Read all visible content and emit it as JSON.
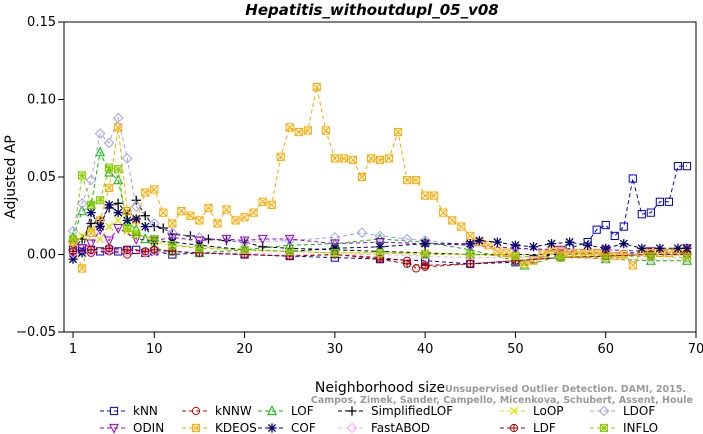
{
  "chart_data": {
    "type": "line",
    "title": "Hepatitis_withoutdupl_05_v08",
    "xlabel": "Neighborhood size",
    "ylabel": "Adjusted AP",
    "xlim": [
      0,
      70
    ],
    "ylim": [
      -0.05,
      0.15
    ],
    "xticks": [
      "1",
      "10",
      "20",
      "30",
      "40",
      "50",
      "60",
      "70"
    ],
    "yticks": [
      "−0.05",
      "0.00",
      "0.05",
      "0.10",
      "0.15"
    ],
    "grid": false,
    "legend_position": "bottom",
    "watermark": [
      "Unsupervised Outlier Detection. DAMI, 2015.",
      "Campos, Zimek, Sander, Campello, Micenkova, Schubert, Assent, Houle"
    ],
    "series": [
      {
        "name": "kNN",
        "color": "#0000cc",
        "marker": "square",
        "x": [
          1,
          2,
          3,
          4,
          5,
          6,
          7,
          8,
          9,
          10,
          12,
          15,
          20,
          25,
          30,
          35,
          40,
          45,
          50,
          52,
          54,
          56,
          58,
          59,
          60,
          61,
          62,
          63,
          64,
          65,
          66,
          67,
          68,
          69
        ],
        "y": [
          0.003,
          0.004,
          0.003,
          0.002,
          0.003,
          0.002,
          0.003,
          0.003,
          0.001,
          0.002,
          0.0,
          0.001,
          0.0,
          -0.001,
          -0.002,
          -0.003,
          -0.004,
          -0.006,
          -0.005,
          -0.003,
          0.0,
          0.004,
          0.008,
          0.016,
          0.019,
          0.012,
          0.018,
          0.049,
          0.026,
          0.027,
          0.034,
          0.034,
          0.057,
          0.057
        ]
      },
      {
        "name": "kNNW",
        "color": "#cc0000",
        "marker": "circle",
        "x": [
          1,
          3,
          5,
          7,
          9,
          10,
          12,
          15,
          20,
          25,
          30,
          35,
          38,
          39,
          40,
          45,
          50,
          55,
          60,
          65,
          69
        ],
        "y": [
          0.001,
          0.001,
          0.002,
          0.0,
          0.001,
          0.002,
          0.002,
          0.001,
          0.0,
          -0.001,
          0.0,
          -0.002,
          -0.004,
          -0.009,
          -0.008,
          -0.006,
          -0.004,
          -0.002,
          -0.001,
          0.0,
          0.0
        ]
      },
      {
        "name": "LOF",
        "color": "#00bb00",
        "marker": "triangle-up",
        "x": [
          1,
          2,
          3,
          4,
          5,
          6,
          7,
          8,
          9,
          10,
          12,
          15,
          20,
          25,
          30,
          35,
          40,
          45,
          50,
          51,
          55,
          60,
          65,
          69
        ],
        "y": [
          0.011,
          0.028,
          0.032,
          0.066,
          0.053,
          0.048,
          0.021,
          0.016,
          0.01,
          0.004,
          0.002,
          0.001,
          0.003,
          0.006,
          0.007,
          0.01,
          0.008,
          0.003,
          -0.004,
          -0.007,
          -0.001,
          -0.003,
          -0.004,
          -0.004
        ]
      },
      {
        "name": "SimplifiedLOF",
        "color": "#000000",
        "marker": "plus",
        "x": [
          1,
          2,
          3,
          4,
          5,
          6,
          7,
          8,
          9,
          10,
          11,
          12,
          14,
          16,
          18,
          20,
          22,
          25,
          30,
          35,
          40,
          45,
          50,
          55,
          60,
          65,
          69
        ],
        "y": [
          0.003,
          0.01,
          0.02,
          0.022,
          0.03,
          0.033,
          0.026,
          0.035,
          0.025,
          0.018,
          0.017,
          0.013,
          0.012,
          0.01,
          0.009,
          0.008,
          0.005,
          0.004,
          0.003,
          0.002,
          0.001,
          0.0,
          0.0,
          0.0,
          0.001,
          0.001,
          0.001
        ]
      },
      {
        "name": "LoOP",
        "color": "#dddd00",
        "marker": "x",
        "x": [
          1,
          2,
          3,
          4,
          5,
          6,
          7,
          8,
          10,
          12,
          15,
          20,
          25,
          30,
          35,
          40,
          45,
          50,
          55,
          60,
          65,
          69
        ],
        "y": [
          0.005,
          0.012,
          0.016,
          0.01,
          0.018,
          0.022,
          0.015,
          0.014,
          0.008,
          0.006,
          0.005,
          0.003,
          0.002,
          0.001,
          0.001,
          0.001,
          0.0,
          0.0,
          0.0,
          0.0,
          0.0,
          0.0
        ]
      },
      {
        "name": "LDOF",
        "color": "#a0a0ee",
        "marker": "diamond",
        "x": [
          1,
          2,
          3,
          4,
          5,
          6,
          7,
          8,
          10,
          12,
          15,
          20,
          25,
          30,
          33,
          35,
          38,
          40,
          45,
          50,
          55,
          60,
          65,
          69
        ],
        "y": [
          0.015,
          0.033,
          0.048,
          0.078,
          0.072,
          0.088,
          0.062,
          0.031,
          0.02,
          0.014,
          0.011,
          0.008,
          0.009,
          0.011,
          0.014,
          0.012,
          0.01,
          0.009,
          0.006,
          0.004,
          0.002,
          0.001,
          0.0,
          0.0
        ]
      },
      {
        "name": "ODIN",
        "color": "#9900cc",
        "marker": "triangle-down",
        "x": [
          1,
          2,
          3,
          4,
          5,
          6,
          8,
          10,
          12,
          15,
          18,
          20,
          22,
          25,
          30,
          35,
          40,
          45,
          50,
          55,
          60,
          65,
          69
        ],
        "y": [
          0.006,
          0.004,
          0.007,
          0.016,
          0.009,
          0.017,
          0.01,
          0.009,
          0.011,
          0.009,
          0.01,
          0.009,
          0.01,
          0.01,
          0.007,
          0.008,
          0.007,
          0.006,
          0.004,
          0.003,
          0.003,
          0.002,
          0.004
        ]
      },
      {
        "name": "KDEOS",
        "color": "#ffaa00",
        "marker": "square-x",
        "x": [
          1,
          2,
          3,
          4,
          5,
          6,
          7,
          8,
          9,
          10,
          11,
          12,
          13,
          14,
          15,
          16,
          17,
          18,
          19,
          20,
          21,
          22,
          23,
          24,
          25,
          26,
          27,
          28,
          29,
          30,
          31,
          32,
          33,
          34,
          35,
          36,
          37,
          38,
          39,
          40,
          41,
          42,
          43,
          44,
          45,
          46,
          47,
          48,
          49,
          50,
          51,
          52,
          53,
          54,
          55,
          56,
          57,
          58,
          59,
          60,
          61,
          62,
          63,
          64,
          65,
          66,
          67,
          68,
          69
        ],
        "y": [
          0.008,
          -0.009,
          0.014,
          0.022,
          0.043,
          0.082,
          0.028,
          0.022,
          0.04,
          0.042,
          0.027,
          0.02,
          0.028,
          0.025,
          0.022,
          0.03,
          0.02,
          0.029,
          0.022,
          0.024,
          0.027,
          0.034,
          0.032,
          0.063,
          0.082,
          0.079,
          0.08,
          0.108,
          0.08,
          0.062,
          0.062,
          0.061,
          0.05,
          0.062,
          0.061,
          0.062,
          0.079,
          0.048,
          0.048,
          0.038,
          0.038,
          0.027,
          0.022,
          0.018,
          0.012,
          0.008,
          0.006,
          0.002,
          0.001,
          -0.002,
          -0.006,
          -0.004,
          0.0,
          0.003,
          0.002,
          0.001,
          0.001,
          0.001,
          0.001,
          0.0,
          -0.001,
          0.0,
          -0.007,
          0.002,
          0.001,
          0.001,
          0.001,
          0.002,
          0.002
        ]
      },
      {
        "name": "COF",
        "color": "#000066",
        "marker": "asterisk",
        "x": [
          1,
          2,
          3,
          4,
          5,
          6,
          7,
          8,
          9,
          10,
          12,
          15,
          20,
          25,
          30,
          35,
          40,
          45,
          46,
          48,
          50,
          52,
          54,
          56,
          58,
          60,
          62,
          64,
          66,
          68,
          69
        ],
        "y": [
          -0.003,
          0.001,
          0.027,
          0.018,
          0.032,
          0.027,
          0.022,
          0.023,
          0.018,
          0.009,
          0.008,
          0.006,
          0.003,
          0.002,
          0.004,
          0.005,
          0.007,
          0.007,
          0.009,
          0.008,
          0.006,
          0.005,
          0.007,
          0.008,
          0.006,
          0.004,
          0.007,
          0.004,
          0.004,
          0.004,
          0.004
        ]
      },
      {
        "name": "FastABOD",
        "color": "#ffaaff",
        "marker": "diamond",
        "x": [
          1,
          3,
          5,
          7,
          9,
          10,
          15,
          20,
          25,
          30,
          35,
          40,
          45,
          50,
          55,
          60,
          65,
          69
        ],
        "y": [
          0.001,
          0.002,
          0.003,
          0.002,
          0.001,
          0.002,
          0.001,
          0.001,
          0.0,
          0.0,
          0.0,
          -0.001,
          -0.002,
          -0.002,
          -0.002,
          -0.003,
          -0.003,
          -0.003
        ]
      },
      {
        "name": "LDF",
        "color": "#990000",
        "marker": "circle-plus",
        "x": [
          1,
          3,
          5,
          7,
          9,
          10,
          12,
          15,
          20,
          25,
          30,
          35,
          38,
          40,
          45,
          50,
          55,
          60,
          65,
          69
        ],
        "y": [
          0.002,
          0.003,
          0.004,
          0.003,
          0.002,
          0.003,
          0.002,
          0.001,
          0.0,
          -0.001,
          0.0,
          -0.003,
          -0.006,
          -0.007,
          -0.006,
          -0.004,
          -0.002,
          -0.001,
          0.0,
          0.0
        ]
      },
      {
        "name": "INFLO",
        "color": "#88cc00",
        "marker": "square-star",
        "x": [
          1,
          2,
          3,
          4,
          5,
          6,
          7,
          8,
          10,
          12,
          15,
          20,
          25,
          30,
          35,
          40,
          45,
          50,
          55,
          60,
          65,
          69
        ],
        "y": [
          0.01,
          0.051,
          0.032,
          0.035,
          0.056,
          0.055,
          0.017,
          0.013,
          0.01,
          0.006,
          0.004,
          0.003,
          0.002,
          0.001,
          0.001,
          0.0,
          0.0,
          -0.001,
          -0.002,
          -0.002,
          -0.001,
          -0.002
        ]
      }
    ]
  }
}
